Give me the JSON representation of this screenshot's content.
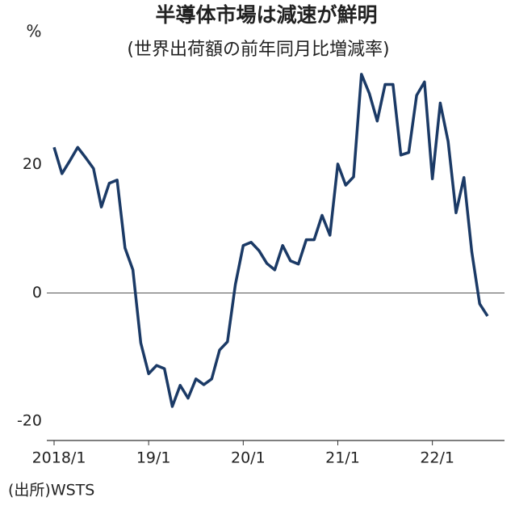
{
  "chart_data": {
    "type": "line",
    "title": "半導体市場は減速が鮮明",
    "subtitle": "(世界出荷額の前年同月比増減率)",
    "y_label": "%",
    "source": "(出所)WSTS",
    "categories": [
      "2018/1",
      null,
      null,
      null,
      null,
      null,
      null,
      null,
      null,
      null,
      null,
      null,
      "19/1",
      null,
      null,
      null,
      null,
      null,
      null,
      null,
      null,
      null,
      null,
      null,
      "20/1",
      null,
      null,
      null,
      null,
      null,
      null,
      null,
      null,
      null,
      null,
      null,
      "21/1",
      null,
      null,
      null,
      null,
      null,
      null,
      null,
      null,
      null,
      null,
      null,
      "22/1",
      null,
      null,
      null,
      null,
      null,
      null,
      null
    ],
    "values": [
      22.7,
      18.6,
      20.6,
      22.7,
      21.1,
      19.4,
      13.4,
      17.1,
      17.6,
      7.0,
      3.6,
      -7.8,
      -12.6,
      -11.3,
      -11.8,
      -17.7,
      -14.4,
      -16.4,
      -13.4,
      -14.3,
      -13.4,
      -8.9,
      -7.6,
      1.3,
      7.4,
      7.9,
      6.6,
      4.6,
      3.6,
      7.4,
      5.0,
      4.5,
      8.3,
      8.3,
      12.1,
      9.0,
      20.1,
      16.8,
      18.1,
      34.1,
      31.1,
      26.8,
      32.5,
      32.5,
      21.5,
      21.9,
      30.8,
      32.9,
      17.8,
      29.6,
      23.6,
      12.5,
      18.0,
      6.4,
      -1.7,
      -3.6
    ],
    "color": "#1b3a66",
    "ylim": [
      -23,
      40
    ],
    "yticks": [
      -20,
      0,
      20
    ]
  }
}
